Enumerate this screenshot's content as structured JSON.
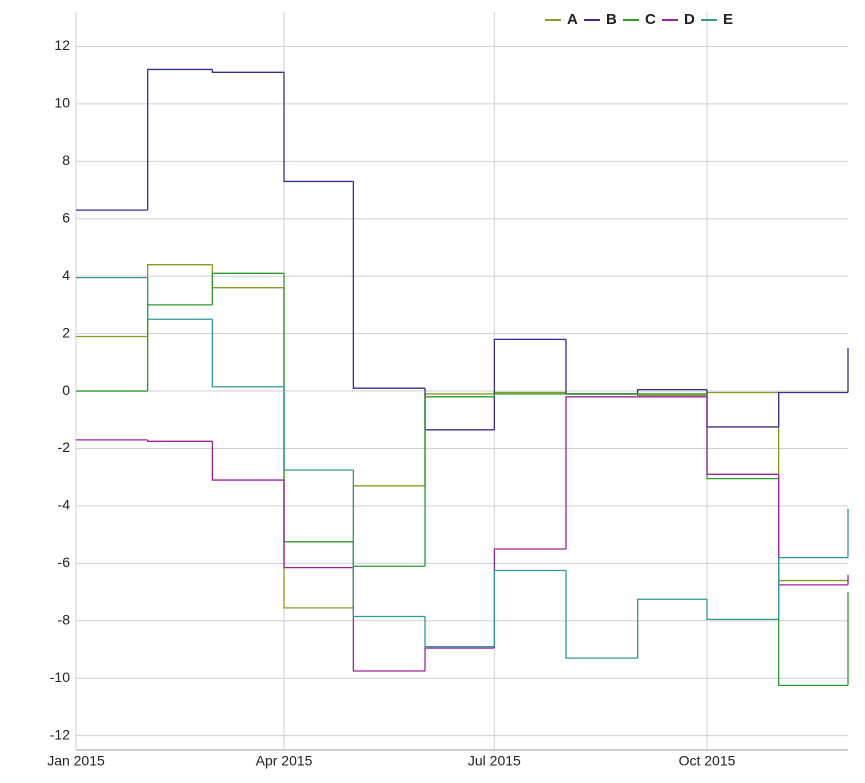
{
  "chart_data": {
    "type": "step",
    "x": [
      "2015-01-01",
      "2015-02-01",
      "2015-03-01",
      "2015-04-01",
      "2015-05-01",
      "2015-06-01",
      "2015-07-01",
      "2015-08-01",
      "2015-09-01",
      "2015-10-01",
      "2015-11-01",
      "2015-12-01"
    ],
    "series": [
      {
        "name": "A",
        "color": "#8c9a22",
        "values": [
          1.9,
          4.4,
          3.6,
          -7.55,
          -3.3,
          -0.1,
          -0.05,
          -0.1,
          -0.15,
          -0.05,
          -6.6,
          -6.6
        ]
      },
      {
        "name": "B",
        "color": "#3b2d8f",
        "values": [
          6.3,
          11.2,
          11.1,
          7.3,
          0.1,
          -1.35,
          1.8,
          -0.1,
          0.05,
          -1.25,
          -0.05,
          1.5
        ]
      },
      {
        "name": "C",
        "color": "#2e9a2e",
        "values": [
          0,
          3.0,
          4.1,
          -5.25,
          -6.1,
          -0.2,
          -0.1,
          -0.1,
          -0.1,
          -3.05,
          -10.25,
          -7.0
        ]
      },
      {
        "name": "D",
        "color": "#a0239f",
        "values": [
          -1.7,
          -1.75,
          -3.1,
          -6.15,
          -9.75,
          -8.95,
          -5.5,
          -0.2,
          -0.2,
          -2.9,
          -6.75,
          -6.4
        ]
      },
      {
        "name": "E",
        "color": "#2d9a9a",
        "values": [
          3.95,
          2.5,
          0.15,
          -2.75,
          -7.85,
          -8.9,
          -6.25,
          -9.3,
          -7.25,
          -7.95,
          -5.8,
          -4.1
        ]
      }
    ],
    "xlim": [
      "2015-01-01",
      "2015-12-01"
    ],
    "xticks": [
      {
        "value": "2015-01-01",
        "label": "Jan 2015"
      },
      {
        "value": "2015-04-01",
        "label": "Apr 2015"
      },
      {
        "value": "2015-07-01",
        "label": "Jul 2015"
      },
      {
        "value": "2015-10-01",
        "label": "Oct 2015"
      }
    ],
    "ylim": [
      -12.5,
      13.2
    ],
    "yticks": [
      -12,
      -10,
      -8,
      -6,
      -4,
      -2,
      0,
      2,
      4,
      6,
      8,
      10,
      12
    ],
    "grid": true,
    "legend": "top"
  }
}
